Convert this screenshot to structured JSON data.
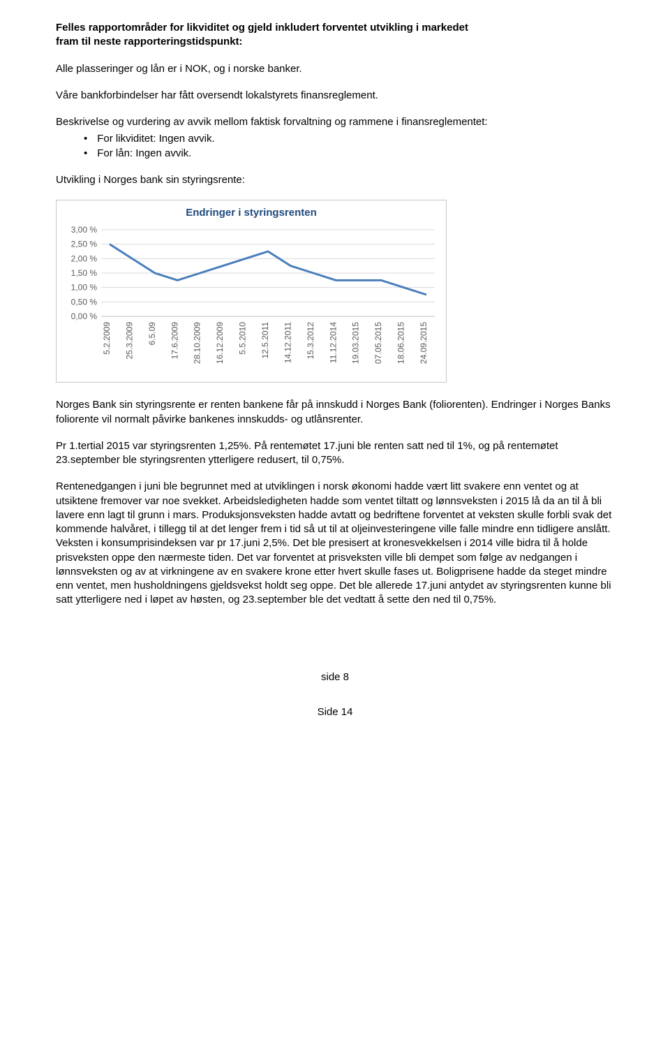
{
  "heading": {
    "line1": "Felles rapportområder for likviditet og gjeld inkludert forventet utvikling i markedet",
    "line2": "fram til neste rapporteringstidspunkt:"
  },
  "para1": "Alle plasseringer og lån er i NOK, og i norske banker.",
  "para2": "Våre bankforbindelser har fått oversendt lokalstyrets finansreglement.",
  "para3_intro": "Beskrivelse og vurdering av avvik mellom faktisk forvaltning og rammene i finansreglementet:",
  "bullets": {
    "b1": "For likviditet: Ingen avvik.",
    "b2": "For lån: Ingen avvik."
  },
  "para4": "Utvikling i Norges bank sin styringsrente:",
  "chart": {
    "title": "Endringer i styringsrenten",
    "title_color": "#1f497d",
    "line_color": "#4a7ebb",
    "line_width": 3,
    "grid_color": "#d9d9d9",
    "axis_color": "#bfbfbf",
    "bg_color": "#ffffff",
    "y_labels": [
      "3,00 %",
      "2,50 %",
      "2,00 %",
      "1,50 %",
      "1,00 %",
      "0,50 %",
      "0,00 %"
    ],
    "y_max": 3.0,
    "y_min": 0.0,
    "y_step": 0.5,
    "x_labels": [
      "5.2.2009",
      "25.3.2009",
      "6.5.09",
      "17.6.2009",
      "28.10.2009",
      "16.12.2009",
      "5.5.2010",
      "12.5.2011",
      "14.12.2011",
      "15.3.2012",
      "11.12.2014",
      "19.03.2015",
      "07.05.2015",
      "18.06.2015",
      "24.09.2015"
    ],
    "values": [
      2.5,
      2.0,
      1.5,
      1.25,
      1.5,
      1.75,
      2.0,
      2.25,
      1.75,
      1.5,
      1.25,
      1.25,
      1.25,
      1.0,
      0.75
    ],
    "label_fontsize": 12,
    "title_fontsize": 15
  },
  "para5": "Norges Bank sin styringsrente er renten bankene får på innskudd i Norges Bank (foliorenten). Endringer i Norges Banks foliorente vil normalt påvirke bankenes innskudds- og utlånsrenter.",
  "para6": "Pr 1.tertial 2015 var styringsrenten 1,25%. På rentemøtet 17.juni ble renten satt ned til 1%, og på rentemøtet 23.september ble styringsrenten ytterligere redusert, til 0,75%.",
  "para7": "Rentenedgangen i juni ble begrunnet med at utviklingen i norsk økonomi hadde vært litt svakere enn ventet og at utsiktene fremover var noe svekket. Arbeidsledigheten hadde som ventet tiltatt og lønnsveksten i 2015 lå da an til å bli lavere enn lagt til grunn i mars. Produksjonsveksten hadde avtatt og bedriftene forventet at veksten skulle forbli svak det kommende halvåret, i tillegg til at det lenger frem i tid så ut til at oljeinvesteringene ville falle mindre enn tidligere anslått. Veksten i konsumprisindeksen var pr 17.juni 2,5%. Det ble presisert at kronesvekkelsen i 2014 ville bidra til å holde prisveksten oppe den nærmeste tiden. Det var forventet at prisveksten ville bli dempet som følge av nedgangen i lønnsveksten og av at virkningene av en svakere krone etter hvert skulle fases ut. Boligprisene hadde da steget mindre enn ventet, men husholdningens gjeldsvekst holdt seg oppe. Det ble allerede 17.juni antydet av styringsrenten kunne bli satt ytterligere ned i løpet av høsten, og 23.september ble det vedtatt å sette den ned til 0,75%.",
  "footer1": "side 8",
  "footer2": "Side 14"
}
